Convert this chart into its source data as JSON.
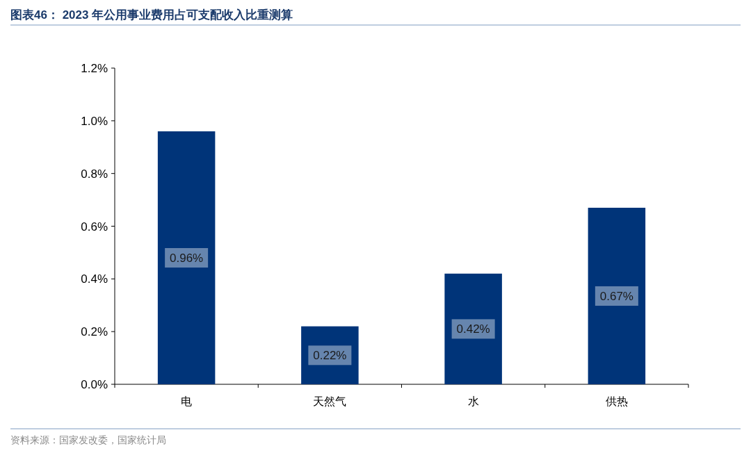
{
  "chart_data": {
    "type": "bar",
    "title": "图表46： 2023 年公用事业费用占可支配收入比重测算",
    "categories": [
      "电",
      "天然气",
      "水",
      "供热"
    ],
    "values": [
      0.96,
      0.22,
      0.42,
      0.67
    ],
    "value_labels": [
      "0.96%",
      "0.22%",
      "0.42%",
      "0.67%"
    ],
    "color": "#003479",
    "ylim": [
      0,
      1.2
    ],
    "yticks": [
      {
        "value": 0,
        "label": "0.0%"
      },
      {
        "value": 0.2,
        "label": "0.2%"
      },
      {
        "value": 0.4,
        "label": "0.4%"
      },
      {
        "value": 0.6,
        "label": "0.6%"
      },
      {
        "value": 0.8,
        "label": "0.8%"
      },
      {
        "value": 1.0,
        "label": "1.0%"
      },
      {
        "value": 1.2,
        "label": "1.2%"
      }
    ],
    "grid": false,
    "annotations": [
      "资料来源：国家发改委，国家统计局"
    ]
  }
}
